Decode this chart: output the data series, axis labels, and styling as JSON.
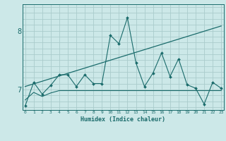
{
  "xlabel": "Humidex (Indice chaleur)",
  "bg_color": "#cce8e8",
  "grid_color": "#aacccc",
  "line_color": "#1a6b6b",
  "x_ticks": [
    0,
    1,
    2,
    3,
    4,
    5,
    6,
    7,
    8,
    9,
    10,
    11,
    12,
    13,
    14,
    15,
    16,
    17,
    18,
    19,
    20,
    21,
    22,
    23
  ],
  "y_ticks": [
    7,
    8
  ],
  "xlim": [
    -0.3,
    23.3
  ],
  "ylim": [
    6.65,
    8.45
  ],
  "main_x": [
    0,
    1,
    2,
    3,
    4,
    5,
    6,
    7,
    8,
    9,
    10,
    11,
    12,
    13,
    14,
    15,
    16,
    17,
    18,
    19,
    20,
    21,
    22,
    23
  ],
  "main_y": [
    6.72,
    7.12,
    6.92,
    7.07,
    7.25,
    7.25,
    7.05,
    7.25,
    7.1,
    7.1,
    7.92,
    7.78,
    8.22,
    7.45,
    7.05,
    7.28,
    7.62,
    7.22,
    7.52,
    7.08,
    7.02,
    6.75,
    7.12,
    7.02
  ],
  "trend_x": [
    0,
    23
  ],
  "trend_y": [
    7.05,
    8.08
  ],
  "lower_x": [
    0,
    1,
    2,
    3,
    4,
    5,
    6,
    7,
    8,
    9,
    10,
    11,
    12,
    13,
    14,
    15,
    16,
    17,
    18,
    19,
    20,
    21,
    22,
    23
  ],
  "lower_y": [
    6.82,
    6.95,
    6.88,
    6.94,
    6.98,
    6.98,
    6.98,
    6.98,
    6.98,
    6.98,
    6.98,
    6.98,
    6.98,
    6.98,
    6.98,
    6.98,
    6.98,
    6.98,
    6.98,
    6.98,
    6.98,
    6.98,
    6.98,
    6.98
  ],
  "hgrid_vals": [
    6.7,
    6.8,
    6.9,
    7.0,
    7.1,
    7.2,
    7.3,
    7.4,
    7.5,
    7.6,
    7.7,
    7.8,
    7.9,
    8.0,
    8.1,
    8.2,
    8.3,
    8.4
  ]
}
